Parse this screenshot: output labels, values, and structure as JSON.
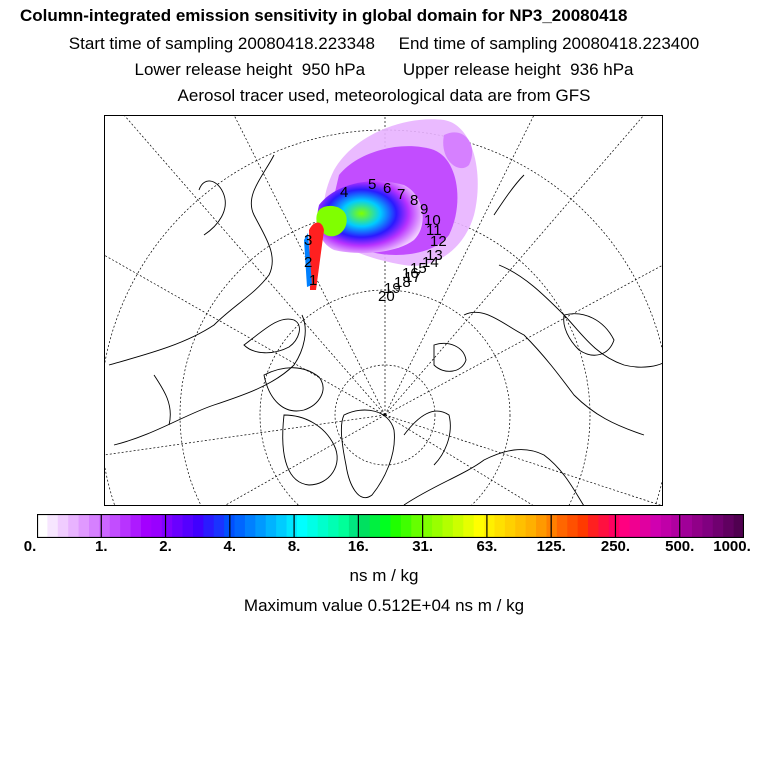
{
  "header": {
    "title": "Column-integrated emission sensitivity in global domain for NP3_20080418",
    "sampling_line": "Start time of sampling 20080418.223348     End time of sampling 20080418.223400",
    "release_line": "Lower release height  950 hPa        Upper release height  936 hPa",
    "tracer_line": "Aerosol tracer used, meteorological data are from GFS"
  },
  "map": {
    "projection": "north polar stereographic",
    "trajectory_labels": [
      "1",
      "2",
      "3",
      "4",
      "5",
      "6",
      "7",
      "8",
      "9",
      "10",
      "11",
      "12",
      "13",
      "14",
      "15",
      "16",
      "17",
      "18",
      "19",
      "20"
    ]
  },
  "colorbar": {
    "tick_labels": [
      "0.",
      "1.",
      "2.",
      "4.",
      "8.",
      "16.",
      "31.",
      "63.",
      "125.",
      "250.",
      "500.",
      "1000."
    ],
    "colors": [
      "#ffffff",
      "#f7e6ff",
      "#f0ccff",
      "#e8b3ff",
      "#e099ff",
      "#d680ff",
      "#cc66ff",
      "#c24dff",
      "#b833ff",
      "#ad1aff",
      "#a300ff",
      "#9900ff",
      "#8000ff",
      "#6a00ff",
      "#5500ff",
      "#4000ff",
      "#2a1aff",
      "#1a33ff",
      "#0050ff",
      "#0066ff",
      "#0080ff",
      "#0099ff",
      "#00b3ff",
      "#00ccff",
      "#00e6ff",
      "#00ffff",
      "#00ffe6",
      "#00ffcc",
      "#00ffb3",
      "#00ff99",
      "#00e680",
      "#00e060",
      "#00f040",
      "#00ff20",
      "#20ff00",
      "#40ff00",
      "#66ff00",
      "#80ff00",
      "#99ff00",
      "#b3ff00",
      "#ccff00",
      "#e6ff00",
      "#ffff00",
      "#fff000",
      "#ffe000",
      "#ffd000",
      "#ffc000",
      "#ffb000",
      "#ff9900",
      "#ff8000",
      "#ff6600",
      "#ff5000",
      "#ff3a00",
      "#ff2020",
      "#ff1040",
      "#ff0060",
      "#ff0080",
      "#f00090",
      "#e000a0",
      "#d000b0",
      "#c000a8",
      "#b000a0",
      "#a00098",
      "#900088",
      "#800080",
      "#700070",
      "#600060",
      "#500050"
    ]
  },
  "units": "ns m / kg",
  "maximum": "Maximum value  0.512E+04 ns m / kg"
}
